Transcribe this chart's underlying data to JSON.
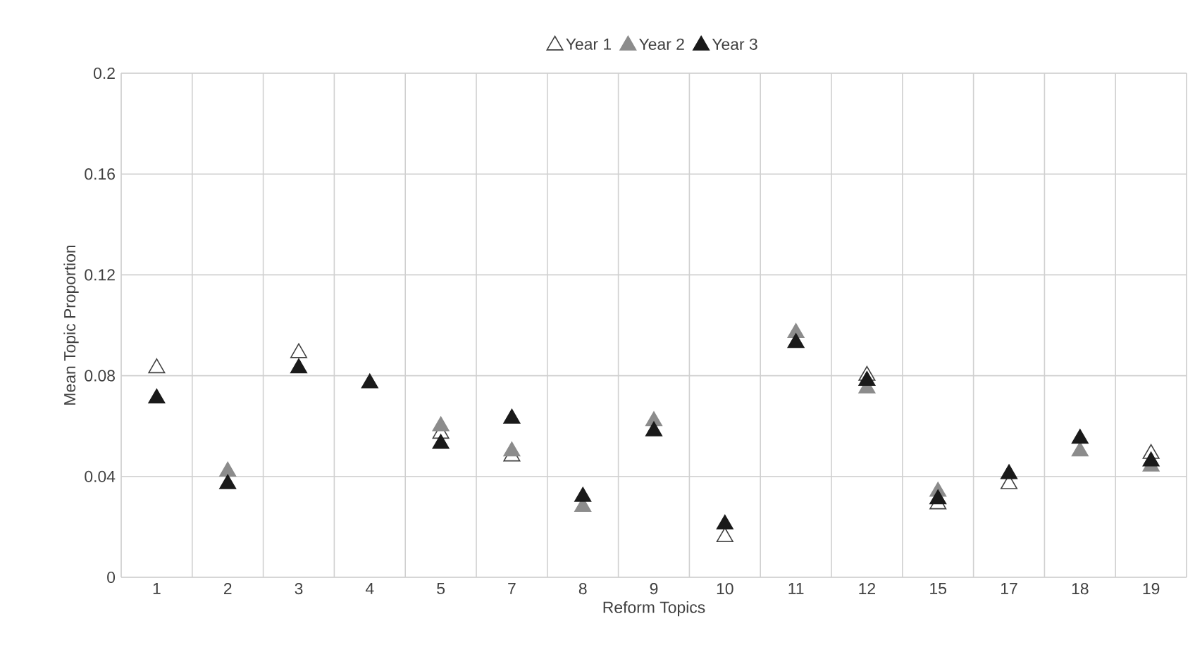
{
  "chart_data": {
    "type": "scatter",
    "xlabel": "Reform Topics",
    "ylabel": "Mean Topic Proportion",
    "categories": [
      "1",
      "2",
      "3",
      "4",
      "5",
      "7",
      "8",
      "9",
      "10",
      "11",
      "12",
      "15",
      "17",
      "18",
      "19"
    ],
    "series": [
      {
        "name": "Year 1",
        "color": "#ffffff",
        "values": [
          0.083,
          null,
          0.089,
          null,
          0.057,
          0.048,
          null,
          null,
          0.016,
          null,
          0.08,
          0.029,
          0.037,
          null,
          0.049
        ]
      },
      {
        "name": "Year 2",
        "color": "#8c8c8c",
        "values": [
          null,
          0.042,
          null,
          null,
          0.06,
          0.05,
          0.028,
          0.062,
          null,
          0.097,
          0.075,
          0.034,
          null,
          0.05,
          0.044
        ]
      },
      {
        "name": "Year 3",
        "color": "#1a1a1a",
        "values": [
          0.071,
          0.037,
          0.083,
          0.077,
          0.053,
          0.063,
          0.032,
          0.058,
          0.021,
          0.093,
          0.078,
          0.031,
          0.041,
          0.055,
          0.046
        ]
      }
    ],
    "ylim": [
      0,
      0.2
    ],
    "yticks": [
      0,
      0.04,
      0.08,
      0.12,
      0.16,
      0.2
    ],
    "grid": true,
    "legend": "top",
    "marker": "triangle"
  }
}
